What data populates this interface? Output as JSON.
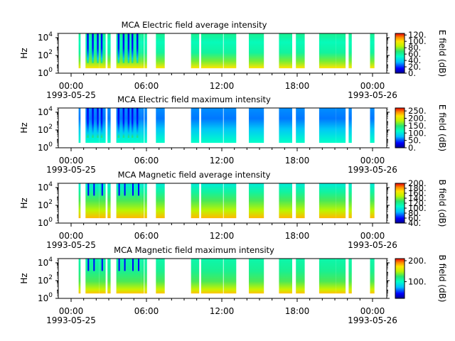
{
  "chart_data": [
    {
      "type": "heatmap",
      "title": "MCA  Electric field average intensity",
      "ylabel": "Hz",
      "ylim": [
        1,
        30000
      ],
      "yscale": "log",
      "yticks": [
        {
          "exp": "0"
        },
        {
          "exp": "2"
        },
        {
          "exp": "4"
        }
      ],
      "xlim": [
        "1993-05-25 00:00",
        "1993-05-26 00:00"
      ],
      "xticks": [
        {
          "time": "00:00",
          "date": "1993-05-25"
        },
        {
          "time": "06:00",
          "date": ""
        },
        {
          "time": "12:00",
          "date": ""
        },
        {
          "time": "18:00",
          "date": ""
        },
        {
          "time": "00:00",
          "date": "1993-05-26"
        }
      ],
      "colorbar": {
        "label": "E field (dB)",
        "min": 0,
        "max": 125,
        "ticks": [
          "0.",
          "20.",
          "40.",
          "60.",
          "80.",
          "100.",
          "120."
        ],
        "colormap": "rainbow-dark-blue-to-red"
      },
      "style": "avg-e"
    },
    {
      "type": "heatmap",
      "title": "MCA  Electric field maximum intensity",
      "ylabel": "Hz",
      "ylim": [
        1,
        30000
      ],
      "yscale": "log",
      "yticks": [
        {
          "exp": "0"
        },
        {
          "exp": "2"
        },
        {
          "exp": "4"
        }
      ],
      "xlim": [
        "1993-05-25 00:00",
        "1993-05-26 00:00"
      ],
      "xticks": [
        {
          "time": "00:00",
          "date": "1993-05-25"
        },
        {
          "time": "06:00",
          "date": ""
        },
        {
          "time": "12:00",
          "date": ""
        },
        {
          "time": "18:00",
          "date": ""
        },
        {
          "time": "00:00",
          "date": "1993-05-26"
        }
      ],
      "colorbar": {
        "label": "E field (dB)",
        "min": 0,
        "max": 270,
        "ticks": [
          "0.",
          "50.",
          "100.",
          "150.",
          "200.",
          "250."
        ],
        "colormap": "rainbow-dark-blue-to-red"
      },
      "style": "max-e"
    },
    {
      "type": "heatmap",
      "title": "MCA  Magnetic field average intensity",
      "ylabel": "Hz",
      "ylim": [
        1,
        30000
      ],
      "yscale": "log",
      "yticks": [
        {
          "exp": "0"
        },
        {
          "exp": "2"
        },
        {
          "exp": "4"
        }
      ],
      "xlim": [
        "1993-05-25 00:00",
        "1993-05-26 00:00"
      ],
      "xticks": [
        {
          "time": "00:00",
          "date": "1993-05-25"
        },
        {
          "time": "06:00",
          "date": ""
        },
        {
          "time": "12:00",
          "date": ""
        },
        {
          "time": "18:00",
          "date": ""
        },
        {
          "time": "00:00",
          "date": "1993-05-26"
        }
      ],
      "colorbar": {
        "label": "B field (dB)",
        "min": 40,
        "max": 200,
        "ticks": [
          "40.",
          "60.",
          "80.",
          "100.",
          "120.",
          "140.",
          "160.",
          "180.",
          "200."
        ],
        "colormap": "rainbow-dark-blue-to-red"
      },
      "style": "avg-b"
    },
    {
      "type": "heatmap",
      "title": "MCA  Magnetic field maximum intensity",
      "ylabel": "Hz",
      "ylim": [
        1,
        30000
      ],
      "yscale": "log",
      "yticks": [
        {
          "exp": "0"
        },
        {
          "exp": "2"
        },
        {
          "exp": "4"
        }
      ],
      "xlim": [
        "1993-05-25 00:00",
        "1993-05-26 00:00"
      ],
      "xticks": [
        {
          "time": "00:00",
          "date": "1993-05-25"
        },
        {
          "time": "06:00",
          "date": ""
        },
        {
          "time": "12:00",
          "date": ""
        },
        {
          "time": "18:00",
          "date": ""
        },
        {
          "time": "00:00",
          "date": "1993-05-26"
        }
      ],
      "colorbar": {
        "label": "B field (dB)",
        "min": 20,
        "max": 210,
        "ticks": [
          "100.",
          "200."
        ],
        "colormap": "rainbow-dark-blue-to-red"
      },
      "style": "max-b"
    }
  ],
  "data_intervals_hours": [
    [
      0.6,
      0.75
    ],
    [
      1.15,
      2.25
    ],
    [
      2.25,
      2.75
    ],
    [
      2.9,
      3.15
    ],
    [
      3.6,
      4.7
    ],
    [
      4.7,
      5.6
    ],
    [
      5.6,
      5.8
    ],
    [
      5.85,
      6.05
    ],
    [
      6.75,
      7.45
    ],
    [
      9.55,
      10.2
    ],
    [
      10.35,
      12.1
    ],
    [
      12.15,
      13.15
    ],
    [
      14.15,
      15.35
    ],
    [
      16.55,
      17.6
    ],
    [
      17.9,
      18.6
    ],
    [
      19.75,
      21.1
    ],
    [
      21.1,
      21.85
    ],
    [
      22.1,
      22.35
    ],
    [
      23.8,
      24.15
    ]
  ]
}
